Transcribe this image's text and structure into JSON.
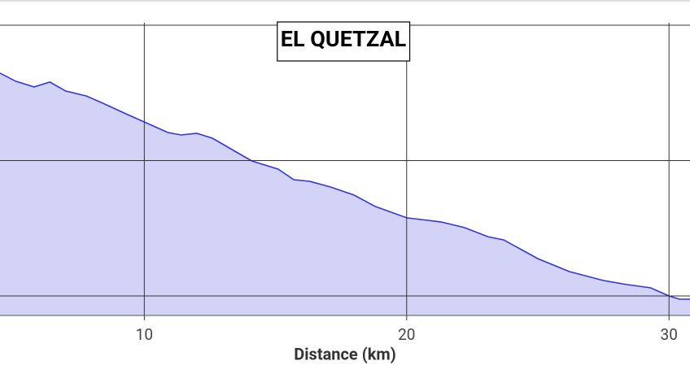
{
  "chart_data": {
    "type": "area",
    "title": "EL QUETZAL",
    "x_label": "Distance (km)",
    "x": [
      4.5,
      5.1,
      5.8,
      6.4,
      7.0,
      7.8,
      8.5,
      9.3,
      10.0,
      10.9,
      11.4,
      12.0,
      12.6,
      13.4,
      14.1,
      15.1,
      15.7,
      16.3,
      17.1,
      18.0,
      18.8,
      20.0,
      21.3,
      22.2,
      23.1,
      23.7,
      25.0,
      26.2,
      27.5,
      28.4,
      29.3,
      30.0,
      30.4,
      30.8
    ],
    "values": [
      164.6,
      158.6,
      154.4,
      158.0,
      151.4,
      147.7,
      141.7,
      134.5,
      128.5,
      120.7,
      118.9,
      120.1,
      116.5,
      107.5,
      99.7,
      93.7,
      85.9,
      84.7,
      80.5,
      74.5,
      66.1,
      57.7,
      54.7,
      50.5,
      43.8,
      41.4,
      27.6,
      18.0,
      11.4,
      8.4,
      6.0,
      0,
      -2.4,
      -2.4
    ],
    "color": "#3434e0",
    "fill": "#d3d3f8",
    "xlim": [
      4.5,
      30.8
    ],
    "xticks": [
      10,
      20,
      30
    ],
    "ylim": [
      -14.4,
      218.6
    ],
    "ygrid": [
      0,
      100,
      200
    ],
    "grid": true
  }
}
